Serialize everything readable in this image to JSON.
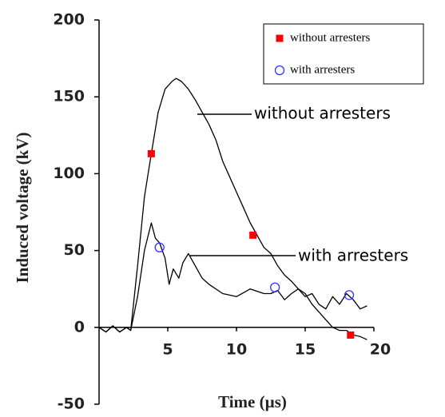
{
  "chart_data": {
    "type": "line",
    "xlabel": "Time (µs)",
    "ylabel": "Induced voltage (kV)",
    "xlim": [
      0,
      20
    ],
    "ylim": [
      -50,
      200
    ],
    "xticks": [
      5,
      10,
      15,
      20
    ],
    "yticks": [
      -50,
      0,
      50,
      100,
      150,
      200
    ],
    "legend": "upper right",
    "series": [
      {
        "name": "without arresters",
        "color": "#000000",
        "x": [
          0,
          0.5,
          1,
          1.5,
          2,
          2.3,
          2.8,
          3.3,
          3.8,
          4.3,
          4.8,
          5.3,
          5.6,
          6,
          6.5,
          7,
          7.5,
          8,
          8.5,
          9,
          9.5,
          10,
          10.5,
          11,
          11.5,
          12,
          12.5,
          13,
          13.5,
          14,
          14.5,
          15,
          15.5,
          16,
          16.5,
          17,
          17.5,
          18,
          18.5,
          19,
          19.5
        ],
        "values": [
          0,
          -3,
          1,
          -3,
          0,
          -2,
          40,
          85,
          113,
          140,
          155,
          160,
          162,
          160,
          155,
          148,
          140,
          132,
          122,
          108,
          98,
          88,
          78,
          68,
          60,
          52,
          48,
          40,
          34,
          30,
          25,
          22,
          15,
          10,
          5,
          0,
          -2,
          -2,
          -5,
          -6,
          -8
        ],
        "markers": {
          "symbol": "square",
          "color": "#ff0000",
          "x": [
            3.8,
            11.2,
            18.3
          ],
          "values": [
            113,
            60,
            -5
          ]
        }
      },
      {
        "name": "with arresters",
        "color": "#000000",
        "x": [
          0,
          0.5,
          1,
          1.5,
          2,
          2.3,
          2.8,
          3.3,
          3.8,
          4.1,
          4.4,
          4.8,
          5.1,
          5.4,
          5.8,
          6.1,
          6.5,
          7,
          7.5,
          8,
          9,
          10,
          11,
          12,
          12.5,
          13,
          13.5,
          14,
          14.5,
          15,
          15.5,
          16,
          16.5,
          17,
          17.5,
          18,
          18.5,
          19,
          19.5
        ],
        "values": [
          0,
          -3,
          1,
          -3,
          0,
          -2,
          20,
          50,
          68,
          58,
          55,
          45,
          28,
          38,
          32,
          42,
          48,
          40,
          32,
          28,
          22,
          20,
          25,
          22,
          22,
          24,
          18,
          22,
          25,
          20,
          22,
          15,
          12,
          20,
          15,
          22,
          18,
          12,
          14
        ],
        "markers": {
          "symbol": "circle",
          "color": "#3333ff",
          "x": [
            4.4,
            12.8,
            18.2
          ],
          "values": [
            52,
            26,
            21
          ]
        }
      }
    ],
    "annotations": [
      "without arresters",
      "with arresters"
    ]
  }
}
